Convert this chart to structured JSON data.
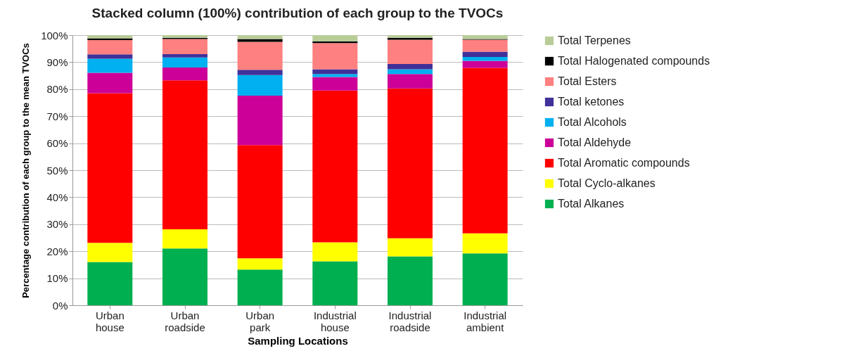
{
  "chart_data": {
    "type": "bar",
    "title": "Stacked column (100%) contribution of each group to the TVOCs",
    "xlabel": "Sampling Locations",
    "ylabel": "Percentage contribution of each group to the mean TVOCs",
    "categories": [
      "Urban house",
      "Urban roadside",
      "Urban park",
      "Industrial house",
      "Industrial roadside",
      "Industrial ambient"
    ],
    "stacked": true,
    "ylim": [
      0,
      100
    ],
    "yticks": [
      {
        "value": 0,
        "label": "0%"
      },
      {
        "value": 10,
        "label": "10%"
      },
      {
        "value": 20,
        "label": "20%"
      },
      {
        "value": 30,
        "label": "30%"
      },
      {
        "value": 40,
        "label": "40%"
      },
      {
        "value": 50,
        "label": "50%"
      },
      {
        "value": 60,
        "label": "60%"
      },
      {
        "value": 70,
        "label": "70%"
      },
      {
        "value": 80,
        "label": "80%"
      },
      {
        "value": 90,
        "label": "90%"
      },
      {
        "value": 100,
        "label": "100%"
      }
    ],
    "grid": "y",
    "legend": "right",
    "series": [
      {
        "name": "Total Alkanes",
        "color": "#00b050",
        "values": [
          16.0,
          21.0,
          13.2,
          16.3,
          18.1,
          19.2
        ]
      },
      {
        "name": "Total Cyclo-alkanes",
        "color": "#ffff00",
        "values": [
          7.1,
          7.1,
          4.2,
          7.0,
          6.7,
          7.4
        ]
      },
      {
        "name": "Total Aromatic compounds",
        "color": "#ff0000",
        "values": [
          55.4,
          55.2,
          41.9,
          56.2,
          55.5,
          61.3
        ]
      },
      {
        "name": "Total Aldehyde",
        "color": "#cc0099",
        "values": [
          7.6,
          4.7,
          18.3,
          5.0,
          5.3,
          2.6
        ]
      },
      {
        "name": "Total Alcohols",
        "color": "#00b0f0",
        "values": [
          5.2,
          3.7,
          7.6,
          1.1,
          1.8,
          1.4
        ]
      },
      {
        "name": "Total ketones",
        "color": "#403099",
        "values": [
          1.6,
          1.3,
          2.0,
          1.8,
          1.9,
          2.0
        ]
      },
      {
        "name": "Total Esters",
        "color": "#ff8080",
        "values": [
          5.3,
          5.6,
          10.3,
          9.7,
          9.0,
          4.4
        ]
      },
      {
        "name": "Total Halogenated compounds",
        "color": "#000000",
        "values": [
          0.6,
          0.4,
          1.1,
          0.6,
          0.7,
          0.3
        ]
      },
      {
        "name": "Total Terpenes",
        "color": "#b8cc98",
        "values": [
          1.2,
          1.0,
          1.4,
          2.3,
          1.0,
          1.4
        ]
      }
    ]
  }
}
